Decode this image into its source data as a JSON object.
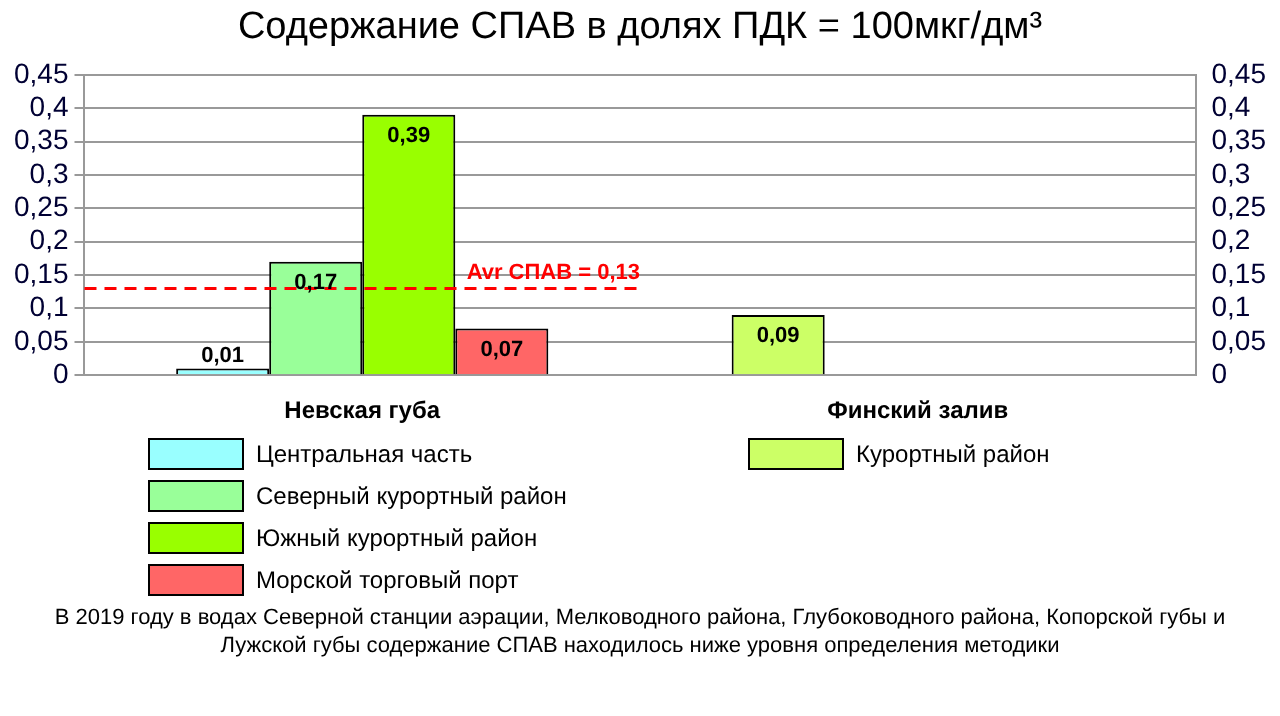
{
  "chart_data": {
    "type": "bar",
    "title": "Содержание СПАВ в долях ПДК = 100мкг/дм³",
    "categories": [
      "Невская губа",
      "Финский залив"
    ],
    "series": [
      {
        "name": "Центральная часть",
        "color": "#99ffff",
        "values": [
          0.01,
          null
        ],
        "value_labels": [
          "0,01",
          null
        ]
      },
      {
        "name": "Северный курортный район",
        "color": "#99ff99",
        "values": [
          0.17,
          null
        ],
        "value_labels": [
          "0,17",
          null
        ]
      },
      {
        "name": "Южный курортный район",
        "color": "#99ff00",
        "values": [
          0.39,
          null
        ],
        "value_labels": [
          "0,39",
          null
        ]
      },
      {
        "name": "Морской торговый порт",
        "color": "#ff6666",
        "values": [
          0.07,
          null
        ],
        "value_labels": [
          "0,07",
          null
        ]
      },
      {
        "name": "Курортный район",
        "color": "#ccff66",
        "values": [
          null,
          0.09
        ],
        "value_labels": [
          null,
          "0,09"
        ]
      }
    ],
    "ylim": [
      0,
      0.45
    ],
    "yticks": [
      0,
      {
        "value": 0.05,
        "label": "0,05"
      },
      {
        "value": 0.1,
        "label": "0,1"
      },
      {
        "value": 0.15,
        "label": "0,15"
      },
      {
        "value": 0.2,
        "label": "0,2"
      },
      {
        "value": 0.25,
        "label": "0,25"
      },
      {
        "value": 0.3,
        "label": "0,3"
      },
      {
        "value": 0.35,
        "label": "0,35"
      },
      {
        "value": 0.4,
        "label": "0,4"
      },
      {
        "value": 0.45,
        "label": "0,45"
      }
    ],
    "y2lim": [
      0,
      0.45
    ],
    "y2ticks": [
      0,
      {
        "value": 0.05,
        "label": "0,05"
      },
      {
        "value": 0.1,
        "label": "0,1"
      },
      {
        "value": 0.15,
        "label": "0,15"
      },
      {
        "value": 0.2,
        "label": "0,2"
      },
      {
        "value": 0.25,
        "label": "0,25"
      },
      {
        "value": 0.3,
        "label": "0,3"
      },
      {
        "value": 0.35,
        "label": "0,35"
      },
      {
        "value": 0.4,
        "label": "0,4"
      },
      {
        "value": 0.45,
        "label": "0,45"
      }
    ],
    "ref_lines": [
      {
        "axis": "y",
        "value": 0.13,
        "label": "Avr СПАВ = 0,13",
        "color": "#ff0000",
        "line_style": "dashed"
      }
    ],
    "grid": "y",
    "legend": "bottom",
    "annotations": [
      "В 2019 году в водах Северной станции аэрации, Мелководного района,   Глубоководного района, Копорской губы и Лужской губы содержание СПАВ находилось ниже уровня определения методики"
    ]
  }
}
